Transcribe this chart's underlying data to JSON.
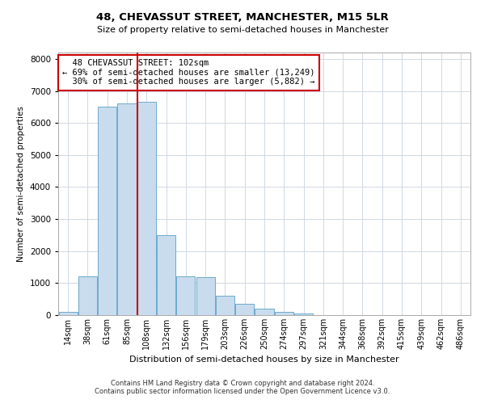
{
  "title": "48, CHEVASSUT STREET, MANCHESTER, M15 5LR",
  "subtitle": "Size of property relative to semi-detached houses in Manchester",
  "xlabel": "Distribution of semi-detached houses by size in Manchester",
  "ylabel": "Number of semi-detached properties",
  "property_label": "48 CHEVASSUT STREET: 102sqm",
  "pct_smaller": 69,
  "count_smaller": "13,249",
  "pct_larger": 30,
  "count_larger": "5,882",
  "categories": [
    "14sqm",
    "38sqm",
    "61sqm",
    "85sqm",
    "108sqm",
    "132sqm",
    "156sqm",
    "179sqm",
    "203sqm",
    "226sqm",
    "250sqm",
    "274sqm",
    "297sqm",
    "321sqm",
    "344sqm",
    "368sqm",
    "392sqm",
    "415sqm",
    "439sqm",
    "462sqm",
    "486sqm"
  ],
  "bar_heights": [
    100,
    1200,
    6500,
    6600,
    6650,
    2500,
    1200,
    1180,
    600,
    350,
    200,
    100,
    50,
    5,
    2,
    1,
    1,
    0,
    0,
    0,
    0
  ],
  "bar_color": "#c8dcee",
  "bar_edge_color": "#5a9fc4",
  "vline_color": "#cc0000",
  "vline_index": 3.55,
  "annotation_box_color": "#cc0000",
  "ylim": [
    0,
    8200
  ],
  "yticks": [
    0,
    1000,
    2000,
    3000,
    4000,
    5000,
    6000,
    7000,
    8000
  ],
  "footer_line1": "Contains HM Land Registry data © Crown copyright and database right 2024.",
  "footer_line2": "Contains public sector information licensed under the Open Government Licence v3.0.",
  "background_color": "#ffffff",
  "grid_color": "#d0d8e4"
}
